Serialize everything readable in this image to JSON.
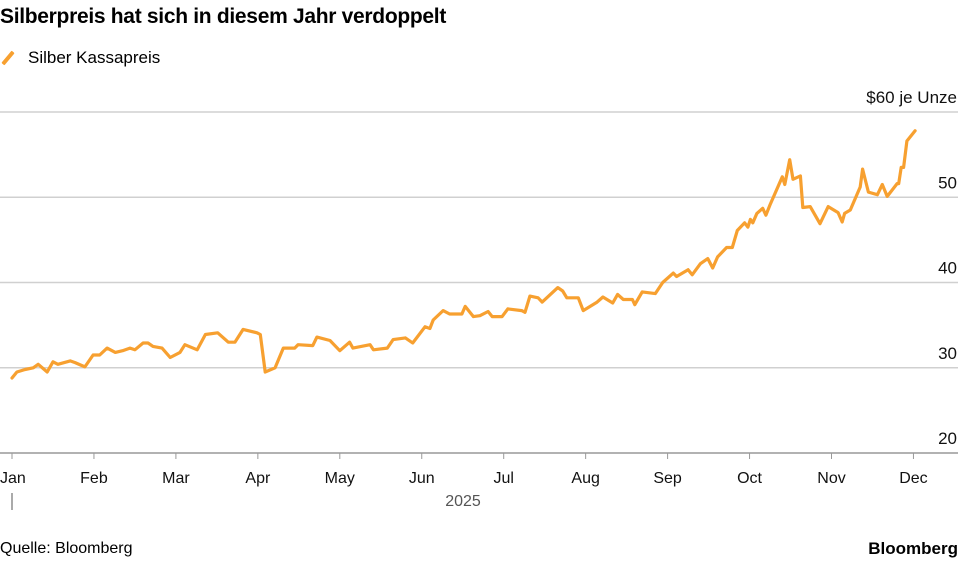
{
  "chart_data": {
    "type": "line",
    "title": "Silberpreis hat sich in diesem Jahr verdoppelt",
    "legend": [
      "Silber Kassapreis"
    ],
    "legend_position": "top-left",
    "ylabel": "$ je Unze",
    "y_unit_label": "$60 je Unze",
    "ylim": [
      20,
      60
    ],
    "yticks": [
      20,
      30,
      40,
      50,
      60
    ],
    "ytick_labels": [
      "20",
      "30",
      "40",
      "50",
      "$60 je Unze"
    ],
    "grid": true,
    "xlabel": "2025",
    "xtick_labels": [
      "Jan",
      "Feb",
      "Mar",
      "Apr",
      "May",
      "Jun",
      "Jul",
      "Aug",
      "Sep",
      "Oct",
      "Nov",
      "Dec"
    ],
    "x_unit": "months since Jan 1, 2025",
    "color": "#f7a030",
    "series": [
      {
        "name": "Silber Kassapreis",
        "points": [
          [
            0,
            28.8
          ],
          [
            0.06,
            29.5
          ],
          [
            0.16,
            29.8
          ],
          [
            0.26,
            30.0
          ],
          [
            0.32,
            30.4
          ],
          [
            0.43,
            29.5
          ],
          [
            0.5,
            30.7
          ],
          [
            0.56,
            30.4
          ],
          [
            0.71,
            30.8
          ],
          [
            0.77,
            30.6
          ],
          [
            0.89,
            30.1
          ],
          [
            0.99,
            31.5
          ],
          [
            1.07,
            31.5
          ],
          [
            1.16,
            32.3
          ],
          [
            1.26,
            31.8
          ],
          [
            1.35,
            32.0
          ],
          [
            1.44,
            32.3
          ],
          [
            1.5,
            32.1
          ],
          [
            1.6,
            32.9
          ],
          [
            1.66,
            32.9
          ],
          [
            1.72,
            32.5
          ],
          [
            1.83,
            32.3
          ],
          [
            1.93,
            31.2
          ],
          [
            2.05,
            31.8
          ],
          [
            2.11,
            32.7
          ],
          [
            2.26,
            32.1
          ],
          [
            2.36,
            33.9
          ],
          [
            2.51,
            34.1
          ],
          [
            2.64,
            33.0
          ],
          [
            2.72,
            33.0
          ],
          [
            2.82,
            34.5
          ],
          [
            2.99,
            34.1
          ],
          [
            3.03,
            33.9
          ],
          [
            3.09,
            29.5
          ],
          [
            3.21,
            30.0
          ],
          [
            3.31,
            32.3
          ],
          [
            3.45,
            32.3
          ],
          [
            3.49,
            32.7
          ],
          [
            3.67,
            32.6
          ],
          [
            3.72,
            33.6
          ],
          [
            3.88,
            33.2
          ],
          [
            4.0,
            32.0
          ],
          [
            4.12,
            33.0
          ],
          [
            4.16,
            32.3
          ],
          [
            4.37,
            32.7
          ],
          [
            4.41,
            32.1
          ],
          [
            4.58,
            32.3
          ],
          [
            4.65,
            33.3
          ],
          [
            4.8,
            33.5
          ],
          [
            4.89,
            32.9
          ],
          [
            5.04,
            34.8
          ],
          [
            5.1,
            34.6
          ],
          [
            5.14,
            35.6
          ],
          [
            5.26,
            36.7
          ],
          [
            5.34,
            36.3
          ],
          [
            5.49,
            36.3
          ],
          [
            5.53,
            37.2
          ],
          [
            5.63,
            36.0
          ],
          [
            5.71,
            36.1
          ],
          [
            5.81,
            36.6
          ],
          [
            5.86,
            36.0
          ],
          [
            5.98,
            36.0
          ],
          [
            6.05,
            36.9
          ],
          [
            6.22,
            36.7
          ],
          [
            6.26,
            36.5
          ],
          [
            6.32,
            38.4
          ],
          [
            6.42,
            38.2
          ],
          [
            6.47,
            37.7
          ],
          [
            6.66,
            39.4
          ],
          [
            6.72,
            39.0
          ],
          [
            6.77,
            38.2
          ],
          [
            6.91,
            38.2
          ],
          [
            6.97,
            36.7
          ],
          [
            7.14,
            37.7
          ],
          [
            7.21,
            38.3
          ],
          [
            7.33,
            37.6
          ],
          [
            7.39,
            38.6
          ],
          [
            7.46,
            38.0
          ],
          [
            7.57,
            38.0
          ],
          [
            7.6,
            37.4
          ],
          [
            7.69,
            38.9
          ],
          [
            7.85,
            38.7
          ],
          [
            7.94,
            40.0
          ],
          [
            8.07,
            41.1
          ],
          [
            8.11,
            40.7
          ],
          [
            8.25,
            41.5
          ],
          [
            8.3,
            40.9
          ],
          [
            8.4,
            42.2
          ],
          [
            8.49,
            42.8
          ],
          [
            8.55,
            41.7
          ],
          [
            8.61,
            43.0
          ],
          [
            8.72,
            44.1
          ],
          [
            8.79,
            44.1
          ],
          [
            8.85,
            46.1
          ],
          [
            8.94,
            47.0
          ],
          [
            8.98,
            46.5
          ],
          [
            9.01,
            47.4
          ],
          [
            9.04,
            47.0
          ],
          [
            9.09,
            48.1
          ],
          [
            9.16,
            48.7
          ],
          [
            9.2,
            47.9
          ],
          [
            9.25,
            49.1
          ],
          [
            9.4,
            52.4
          ],
          [
            9.43,
            51.5
          ],
          [
            9.49,
            54.4
          ],
          [
            9.53,
            52.1
          ],
          [
            9.62,
            52.5
          ],
          [
            9.65,
            48.8
          ],
          [
            9.74,
            48.9
          ],
          [
            9.86,
            46.9
          ],
          [
            9.96,
            48.9
          ],
          [
            10.08,
            48.2
          ],
          [
            10.13,
            47.1
          ],
          [
            10.16,
            48.1
          ],
          [
            10.23,
            48.5
          ],
          [
            10.35,
            51.2
          ],
          [
            10.38,
            53.3
          ],
          [
            10.45,
            50.6
          ],
          [
            10.56,
            50.3
          ],
          [
            10.62,
            51.5
          ],
          [
            10.68,
            50.1
          ],
          [
            10.8,
            51.6
          ],
          [
            10.82,
            51.6
          ],
          [
            10.85,
            53.5
          ],
          [
            10.88,
            53.5
          ],
          [
            10.92,
            56.6
          ],
          [
            11.02,
            57.8
          ]
        ]
      }
    ]
  },
  "footer": {
    "source": "Quelle: Bloomberg",
    "brand": "Bloomberg"
  }
}
